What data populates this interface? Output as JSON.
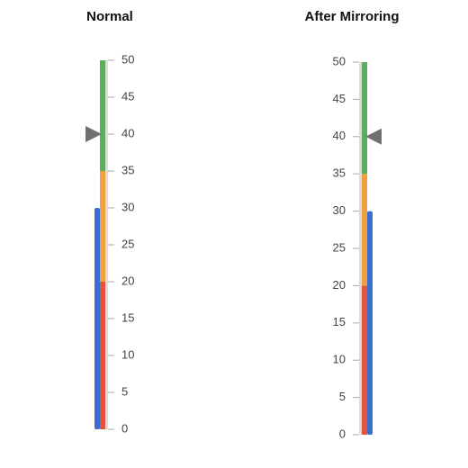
{
  "chart_data": [
    {
      "type": "linear-gauge",
      "title": "Normal",
      "mirrored": false,
      "ylim": [
        0,
        50
      ],
      "yticks": [
        0,
        5,
        10,
        15,
        20,
        25,
        30,
        35,
        40,
        45,
        50
      ],
      "ranges": [
        {
          "from": 0,
          "to": 20,
          "color": "#e5533d"
        },
        {
          "from": 20,
          "to": 35,
          "color": "#f0a040"
        },
        {
          "from": 35,
          "to": 50,
          "color": "#5cae5c"
        }
      ],
      "bar": {
        "value": 30,
        "color": "#3a6fd0"
      },
      "pointer": {
        "value": 40,
        "color": "#707070"
      }
    },
    {
      "type": "linear-gauge",
      "title": "After Mirroring",
      "mirrored": true,
      "ylim": [
        0,
        50
      ],
      "yticks": [
        0,
        5,
        10,
        15,
        20,
        25,
        30,
        35,
        40,
        45,
        50
      ],
      "ranges": [
        {
          "from": 0,
          "to": 20,
          "color": "#e5533d"
        },
        {
          "from": 20,
          "to": 35,
          "color": "#f0a040"
        },
        {
          "from": 35,
          "to": 50,
          "color": "#5cae5c"
        }
      ],
      "bar": {
        "value": 30,
        "color": "#3a6fd0"
      },
      "pointer": {
        "value": 40,
        "color": "#707070"
      }
    }
  ]
}
